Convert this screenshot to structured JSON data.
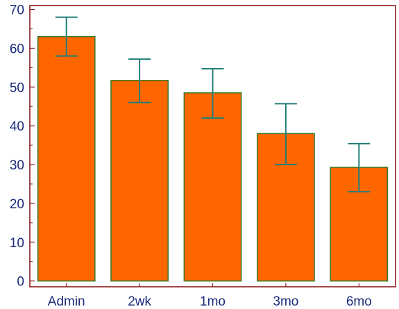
{
  "chart_data": {
    "type": "bar",
    "title": "",
    "xlabel": "",
    "ylabel": "",
    "categories": [
      "Admin",
      "2wk",
      "1mo",
      "3mo",
      "6mo"
    ],
    "series": [
      {
        "values": [
          63,
          51.7,
          48.5,
          38,
          29.3
        ],
        "error_low": [
          58,
          46,
          42,
          30,
          23
        ],
        "error_high": [
          68,
          57.2,
          54.7,
          45.7,
          35.4
        ]
      }
    ],
    "ylim": [
      -1.5,
      71
    ],
    "yticks": [
      0,
      10,
      20,
      30,
      40,
      50,
      60,
      70
    ],
    "grid": false,
    "legend": "none",
    "colors": {
      "bar_fill": "#FF6600",
      "bar_edge": "#3C7A2A",
      "error_bar": "#1F7F78",
      "axis_frame": "#8B1A1A",
      "tick_label": "#1A2A7A"
    }
  }
}
